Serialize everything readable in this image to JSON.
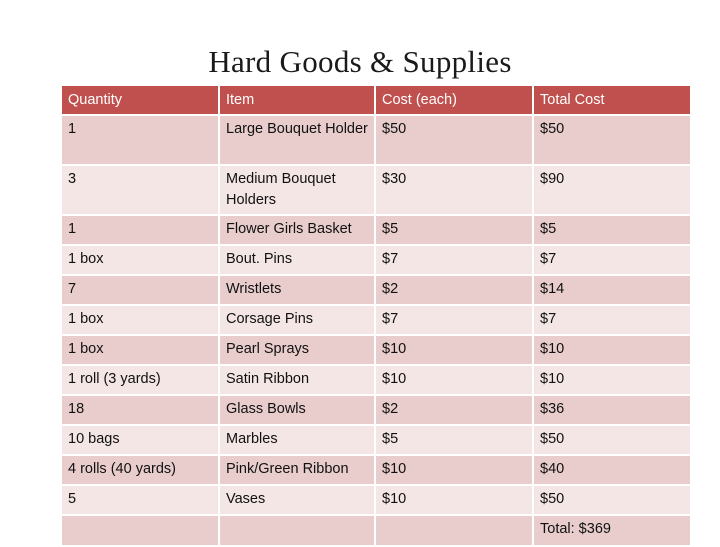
{
  "title": "Hard Goods & Supplies",
  "headers": [
    "Quantity",
    "Item",
    "Cost (each)",
    "Total Cost"
  ],
  "rows": [
    [
      "1",
      "Large Bouquet Holder",
      "$50",
      "$50"
    ],
    [
      "3",
      "Medium Bouquet Holders",
      "$30",
      "$90"
    ],
    [
      "1",
      "Flower Girls Basket",
      "$5",
      "$5"
    ],
    [
      "1 box",
      "Bout. Pins",
      "$7",
      "$7"
    ],
    [
      "7",
      "Wristlets",
      "$2",
      "$14"
    ],
    [
      "1 box",
      "Corsage Pins",
      "$7",
      "$7"
    ],
    [
      "1 box",
      "Pearl Sprays",
      "$10",
      "$10"
    ],
    [
      "1 roll (3 yards)",
      "Satin Ribbon",
      "$10",
      "$10"
    ],
    [
      "18",
      "Glass Bowls",
      "$2",
      "$36"
    ],
    [
      "10 bags",
      "Marbles",
      "$5",
      "$50"
    ],
    [
      "4 rolls (40 yards)",
      "Pink/Green Ribbon",
      "$10",
      "$40"
    ],
    [
      "5",
      "Vases",
      "$10",
      "$50"
    ]
  ],
  "total": "Total: $369",
  "colors": {
    "header": "#c0504d",
    "band_dark": "#e8cdcc",
    "band_light": "#f3e6e5"
  }
}
